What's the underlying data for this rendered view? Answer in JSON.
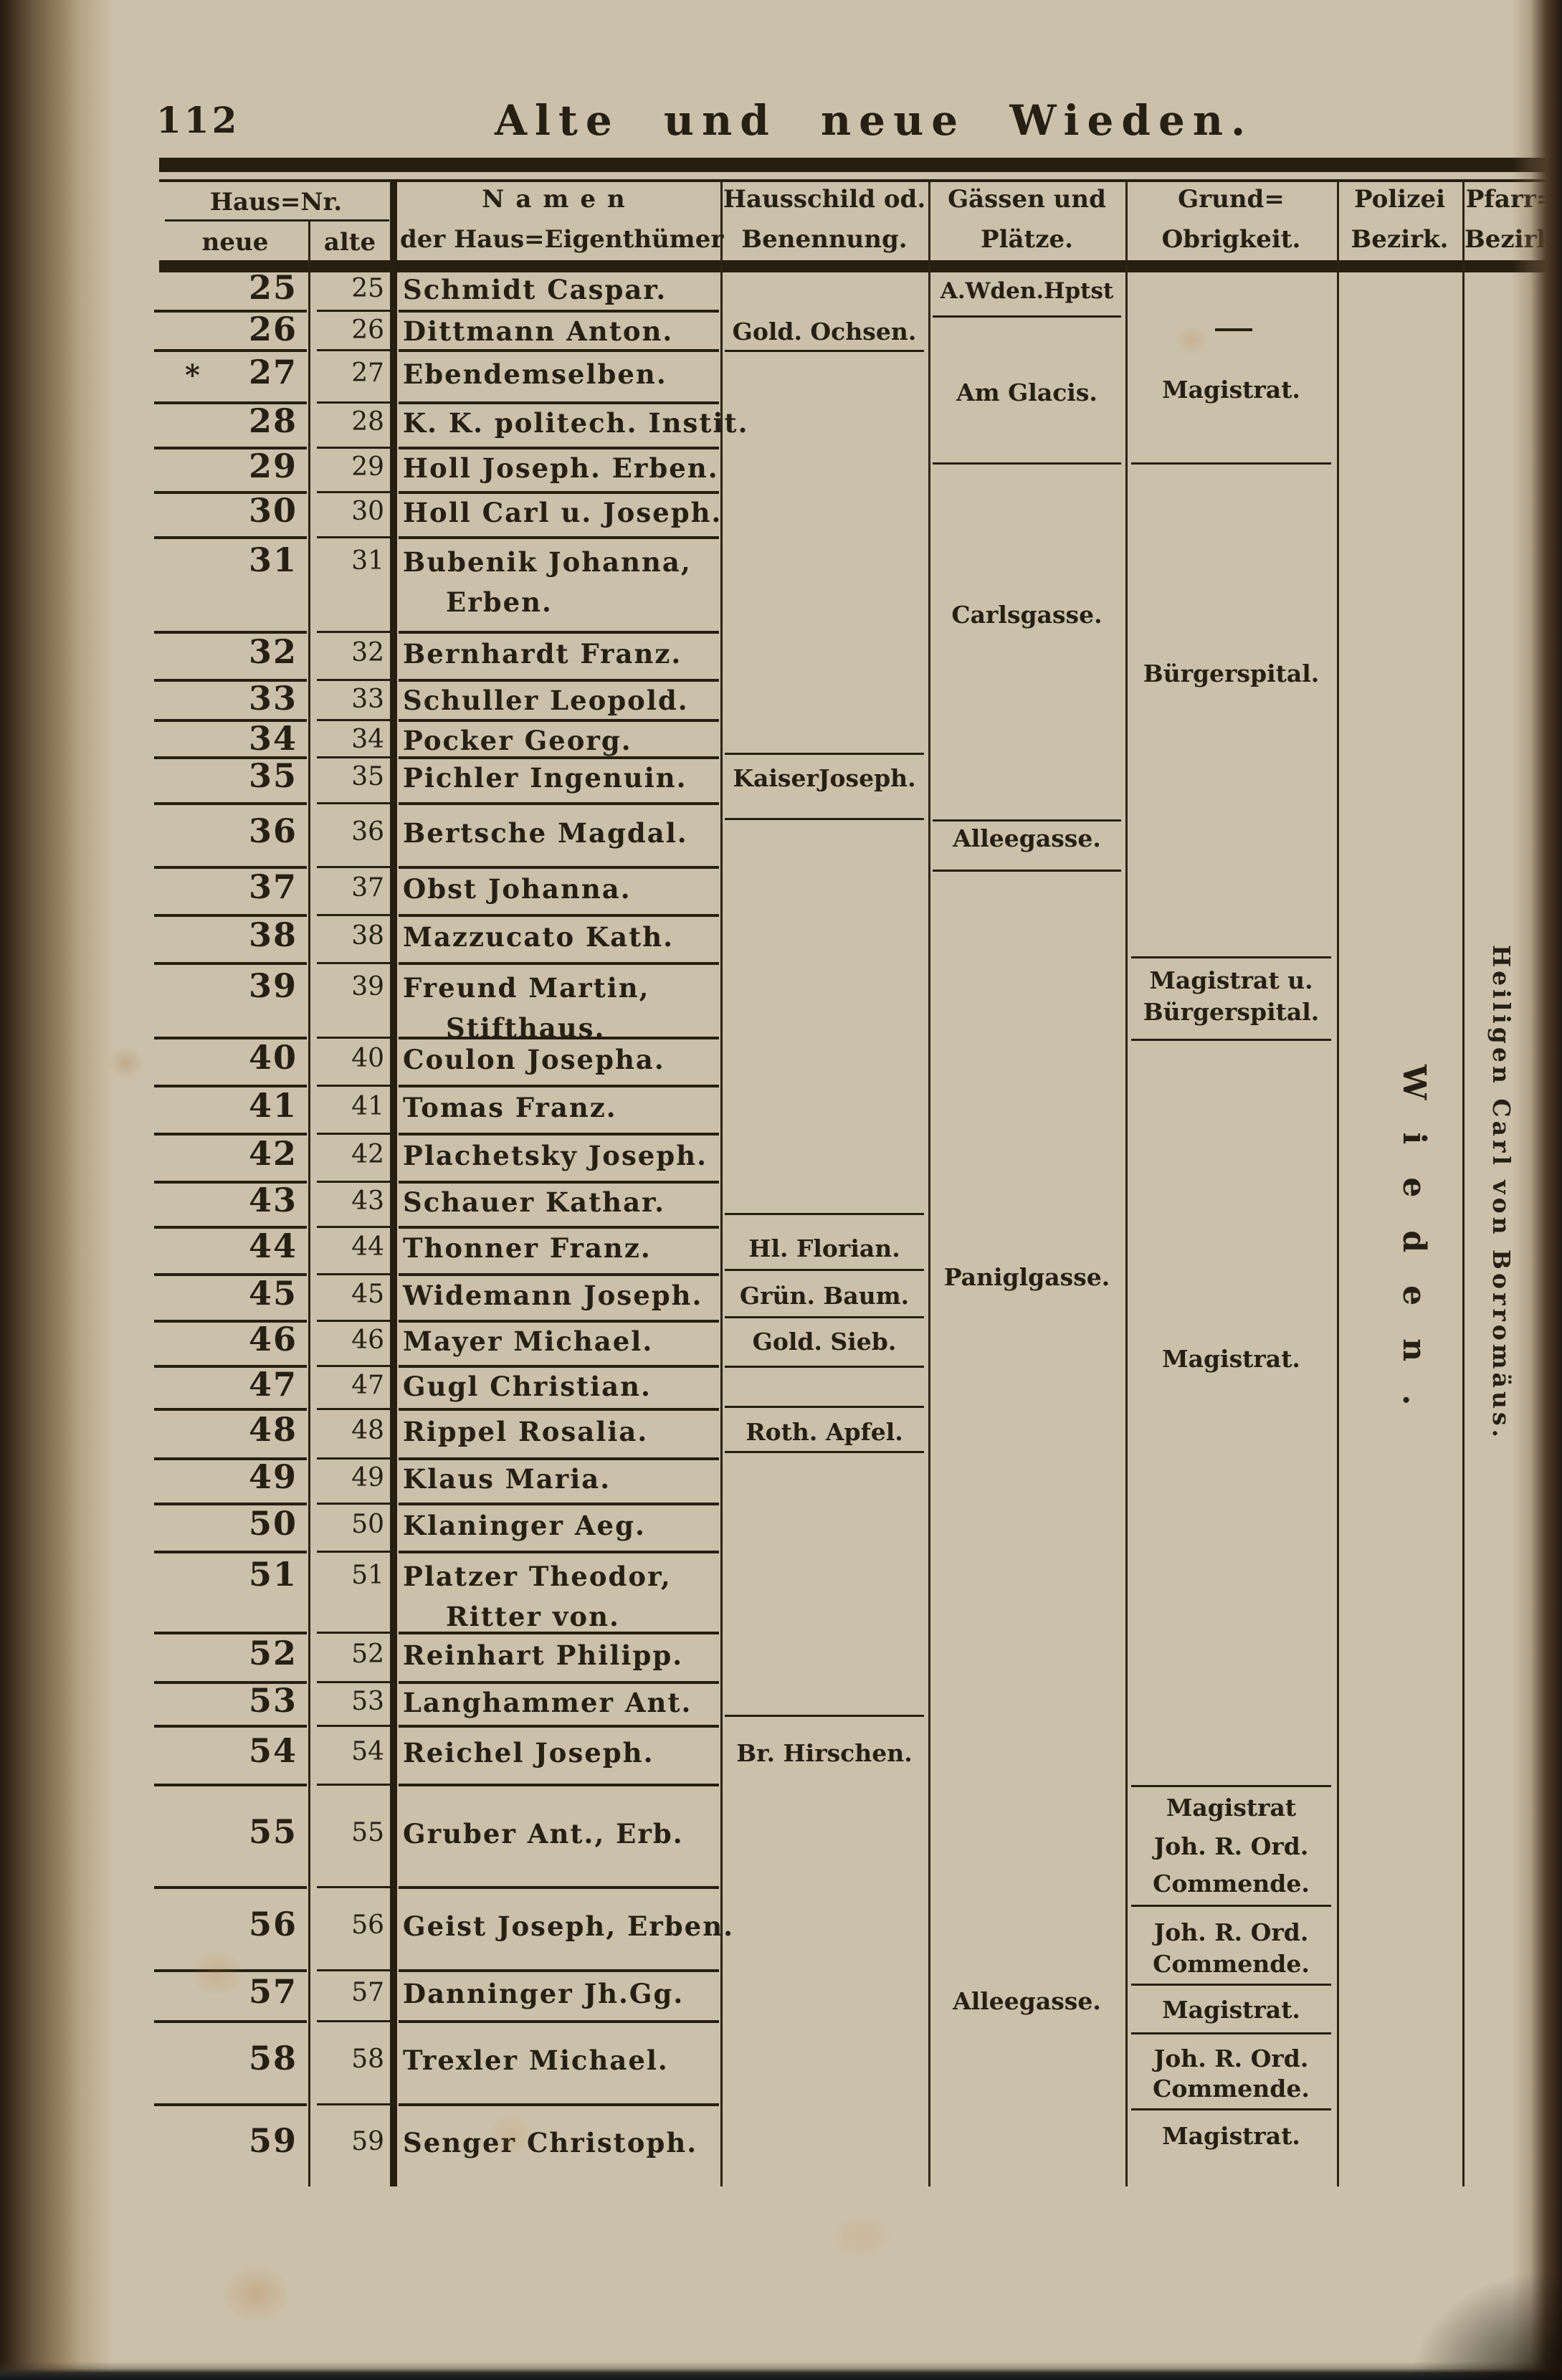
{
  "page": {
    "number": "112",
    "title": "Alte und neue Wieden."
  },
  "colors": {
    "paper": "#cbc0a9",
    "ink": "#261f14",
    "rule": "#261e11",
    "binding": "#30251a",
    "foxing": "#b97a40"
  },
  "table": {
    "headers": {
      "haus_nr": "Haus=Nr.",
      "neue": "neue",
      "alte": "alte",
      "namen_line1": "Namen",
      "namen_line2": "der Haus=Eigenthümer",
      "hausschild_line1": "Hausschild od.",
      "hausschild_line2": "Benennung.",
      "gassen_line1": "Gässen und",
      "gassen_line2": "Plätze.",
      "grund_line1": "Grund=",
      "grund_line2": "Obrigkeit.",
      "polizei_line1": "Polizei",
      "polizei_line2": "Bezirk.",
      "pfarr_line1": "Pfarr=",
      "pfarr_line2": "Bezirk."
    },
    "rows": [
      {
        "neue": "25",
        "alte": "25",
        "name": "Schmidt Caspar."
      },
      {
        "neue": "26",
        "alte": "26",
        "name": "Dittmann Anton.",
        "schild": "Gold. Ochsen."
      },
      {
        "neue": "27",
        "alte": "27",
        "star": "*",
        "name": "Ebendemselben."
      },
      {
        "neue": "28",
        "alte": "28",
        "name": "K. K. politech. Instit."
      },
      {
        "neue": "29",
        "alte": "29",
        "name": "Holl Joseph. Erben."
      },
      {
        "neue": "30",
        "alte": "30",
        "name": "Holl Carl u. Joseph."
      },
      {
        "neue": "31",
        "alte": "31",
        "name": "Bubenik Johanna,",
        "name2": "Erben."
      },
      {
        "neue": "32",
        "alte": "32",
        "name": "Bernhardt Franz."
      },
      {
        "neue": "33",
        "alte": "33",
        "name": "Schuller Leopold."
      },
      {
        "neue": "34",
        "alte": "34",
        "name": "Pocker Georg."
      },
      {
        "neue": "35",
        "alte": "35",
        "name": "Pichler Ingenuin.",
        "schild": "KaiserJoseph."
      },
      {
        "neue": "36",
        "alte": "36",
        "name": "Bertsche Magdal."
      },
      {
        "neue": "37",
        "alte": "37",
        "name": "Obst Johanna."
      },
      {
        "neue": "38",
        "alte": "38",
        "name": "Mazzucato Kath."
      },
      {
        "neue": "39",
        "alte": "39",
        "name": "Freund Martin,",
        "name2": "Stifthaus."
      },
      {
        "neue": "40",
        "alte": "40",
        "name": "Coulon Josepha."
      },
      {
        "neue": "41",
        "alte": "41",
        "name": "Tomas Franz."
      },
      {
        "neue": "42",
        "alte": "42",
        "name": "Plachetsky Joseph."
      },
      {
        "neue": "43",
        "alte": "43",
        "name": "Schauer Kathar."
      },
      {
        "neue": "44",
        "alte": "44",
        "name": "Thonner Franz.",
        "schild": "Hl. Florian."
      },
      {
        "neue": "45",
        "alte": "45",
        "name": "Widemann Joseph.",
        "schild": "Grün. Baum."
      },
      {
        "neue": "46",
        "alte": "46",
        "name": "Mayer Michael.",
        "schild": "Gold. Sieb."
      },
      {
        "neue": "47",
        "alte": "47",
        "name": "Gugl Christian."
      },
      {
        "neue": "48",
        "alte": "48",
        "name": "Rippel Rosalia.",
        "schild": "Roth. Apfel."
      },
      {
        "neue": "49",
        "alte": "49",
        "name": "Klaus Maria."
      },
      {
        "neue": "50",
        "alte": "50",
        "name": "Klaninger Aeg."
      },
      {
        "neue": "51",
        "alte": "51",
        "name": "Platzer Theodor,",
        "name2": "Ritter von."
      },
      {
        "neue": "52",
        "alte": "52",
        "name": "Reinhart Philipp."
      },
      {
        "neue": "53",
        "alte": "53",
        "name": "Langhammer Ant."
      },
      {
        "neue": "54",
        "alte": "54",
        "name": "Reichel Joseph.",
        "schild": "Br. Hirschen."
      },
      {
        "neue": "55",
        "alte": "55",
        "name": "Gruber Ant., Erb."
      },
      {
        "neue": "56",
        "alte": "56",
        "name": "Geist Joseph, Erben."
      },
      {
        "neue": "57",
        "alte": "57",
        "name": "Danninger Jh.Gg."
      },
      {
        "neue": "58",
        "alte": "58",
        "name": "Trexler Michael."
      },
      {
        "neue": "59",
        "alte": "59",
        "name": "Senger Christoph."
      }
    ],
    "gassen_sections": [
      "A.Wden.Hptst",
      "Am Glacis.",
      "Carlsgasse.",
      "Alleegasse.",
      "Paniglgasse.",
      "Alleegasse."
    ],
    "grund_sections": [
      "—",
      "Magistrat.",
      "Bürgerspital.",
      "Magistrat u.",
      "Bürgerspital.",
      "Magistrat.",
      "Magistrat",
      "Joh. R. Ord.",
      "Commende.",
      "Joh. R. Ord.",
      "Commende.",
      "Magistrat.",
      "Joh. R. Ord.",
      "Commende.",
      "Magistrat."
    ],
    "polizei_vertical": "Wieden.",
    "pfarr_vertical": "Heiligen Carl von Borromäus."
  }
}
